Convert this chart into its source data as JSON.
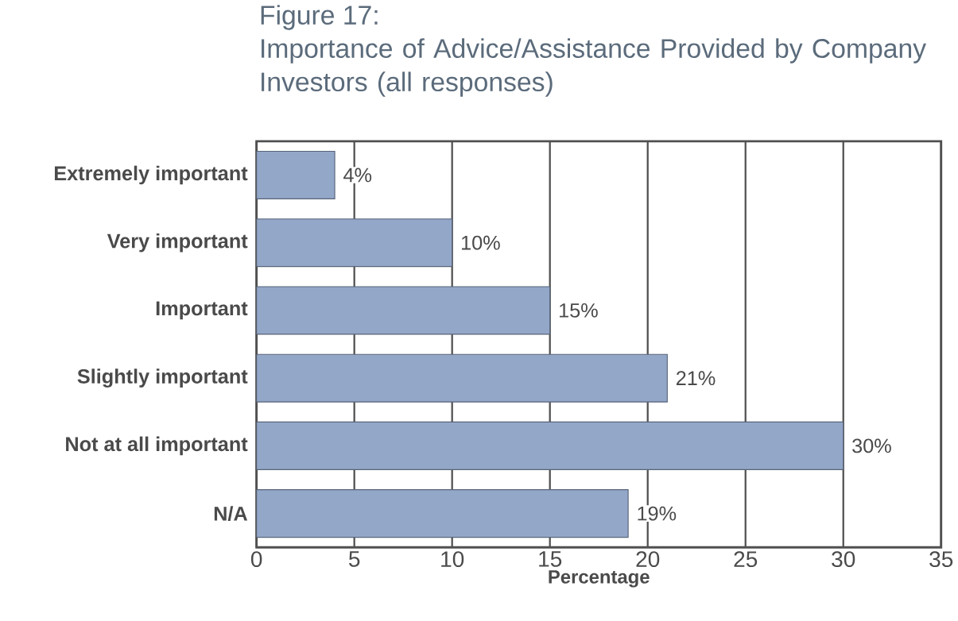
{
  "chart_data": {
    "type": "bar",
    "orientation": "horizontal",
    "title": "Figure 17:",
    "subtitle": "Importance of Advice/Assistance Provided by Company Investors (all responses)",
    "categories": [
      "Extremely important",
      "Very important",
      "Important",
      "Slightly important",
      "Not at all important",
      "N/A"
    ],
    "values": [
      4,
      10,
      15,
      21,
      30,
      19
    ],
    "value_labels": [
      "4%",
      "10%",
      "15%",
      "21%",
      "30%",
      "19%"
    ],
    "color": "#93a7c9",
    "xlim": [
      0,
      35
    ],
    "xticks": [
      0,
      5,
      10,
      15,
      20,
      25,
      30,
      35
    ],
    "xlabel": "Percentage",
    "grid": "x"
  }
}
